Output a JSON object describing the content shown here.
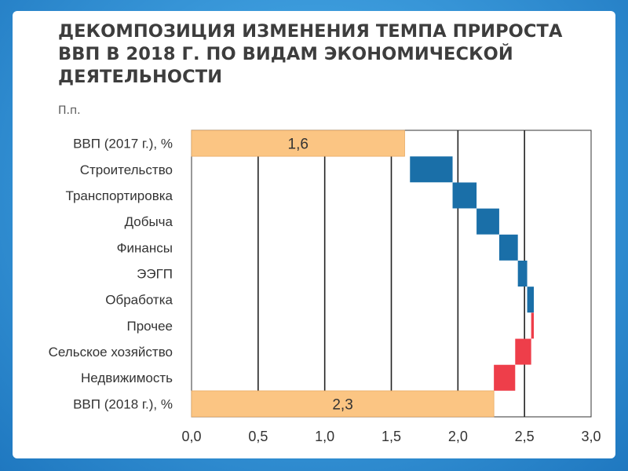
{
  "title": "ДЕКОМПОЗИЦИЯ ИЗМЕНЕНИЯ ТЕМПА ПРИРОСТА ВВП В 2018 Г. ПО ВИДАМ ЭКОНОМИЧЕСКОЙ ДЕЯТЕЛЬНОСТИ",
  "unit": "П.п.",
  "chart_data": {
    "type": "bar",
    "subtype": "waterfall-horizontal",
    "title": "ДЕКОМПОЗИЦИЯ ИЗМЕНЕНИЯ ТЕМПА ПРИРОСТА ВВП В 2018 Г. ПО ВИДАМ ЭКОНОМИЧЕСКОЙ ДЕЯТЕЛЬНОСТИ",
    "unit_label": "П.п.",
    "xlim": [
      0,
      3
    ],
    "ticks": [
      0,
      0.5,
      1.0,
      1.5,
      2.0,
      2.5,
      3.0
    ],
    "tick_labels": [
      "0,0",
      "0,5",
      "1,0",
      "1,5",
      "2,0",
      "2,5",
      "3,0"
    ],
    "grid": true,
    "colors": {
      "total": "#fbc583",
      "positive": "#1a6fa8",
      "negative": "#ee3e4a",
      "grid": "#222222"
    },
    "bars": [
      {
        "label": "ВВП (2017 г.), %",
        "kind": "total",
        "value": 1.6,
        "value_label": "1,6"
      },
      {
        "label": "Строительство",
        "kind": "positive",
        "start": 1.64,
        "end": 1.96
      },
      {
        "label": "Транспортировка",
        "kind": "positive",
        "start": 1.96,
        "end": 2.14
      },
      {
        "label": "Добыча",
        "kind": "positive",
        "start": 2.14,
        "end": 2.31
      },
      {
        "label": "Финансы",
        "kind": "positive",
        "start": 2.31,
        "end": 2.45
      },
      {
        "label": "ЭЭГП",
        "kind": "positive",
        "start": 2.45,
        "end": 2.52
      },
      {
        "label": "Обработка",
        "kind": "positive",
        "start": 2.52,
        "end": 2.57
      },
      {
        "label": "Прочее",
        "kind": "negative",
        "start": 2.57,
        "end": 2.55
      },
      {
        "label": "Сельское хозяйство",
        "kind": "negative",
        "start": 2.55,
        "end": 2.43
      },
      {
        "label": "Недвижимость",
        "kind": "negative",
        "start": 2.43,
        "end": 2.27
      },
      {
        "label": "ВВП (2018 г.), %",
        "kind": "total",
        "value": 2.27,
        "value_label": "2,3"
      }
    ]
  }
}
